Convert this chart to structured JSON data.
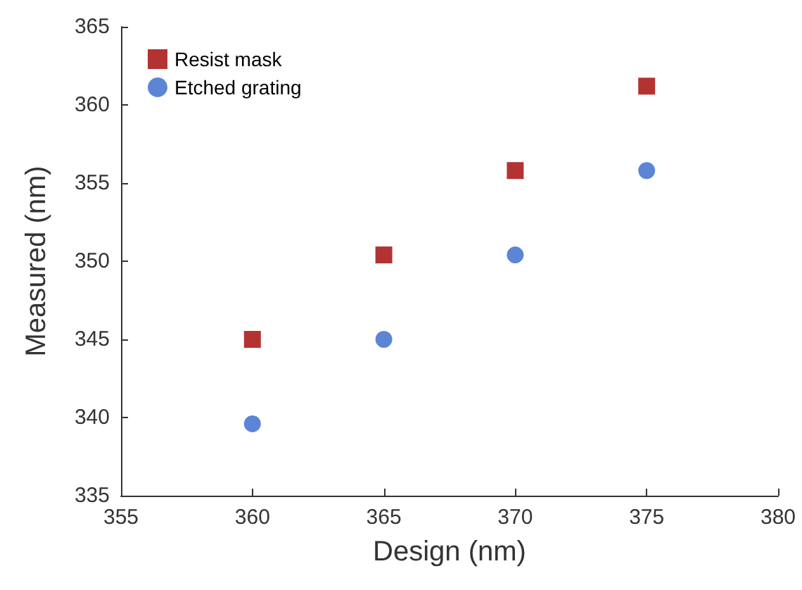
{
  "chart_data": {
    "type": "scatter",
    "xlabel": "Design (nm)",
    "ylabel": "Measured (nm)",
    "x": [
      360,
      365,
      370,
      375
    ],
    "series": [
      {
        "name": "Resist mask",
        "color": "#a00000",
        "marker": "square",
        "values": [
          345,
          350.4,
          355.8,
          361.2
        ]
      },
      {
        "name": "Etched grating",
        "color": "#3366cc",
        "marker": "circle",
        "values": [
          339.6,
          345,
          350.4,
          355.8
        ]
      }
    ],
    "xlim": [
      355,
      380
    ],
    "xticks": [
      355,
      360,
      365,
      370,
      375,
      380
    ],
    "ylim": [
      335,
      365
    ],
    "yticks": [
      335,
      340,
      345,
      350,
      355,
      360,
      365
    ],
    "grid": false,
    "legend": "top left"
  }
}
